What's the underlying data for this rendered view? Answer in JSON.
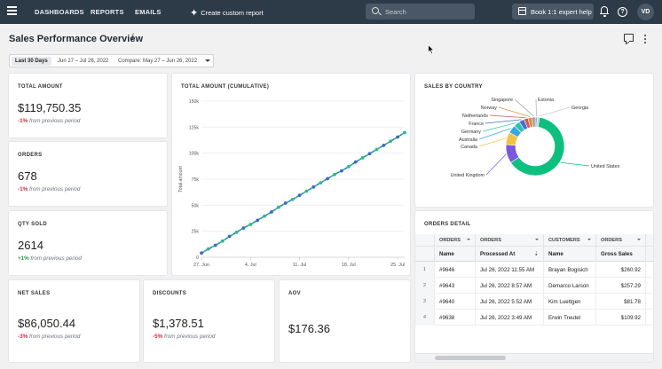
{
  "nav": {
    "links": [
      "DASHBOARDS",
      "REPORTS",
      "EMAILS"
    ],
    "create_label": "Create custom report",
    "search_placeholder": "Search",
    "book_label": "Book 1:1 expert help",
    "avatar_initials": "VD"
  },
  "page": {
    "title": "Sales Performance Overview",
    "info_glyph": "i",
    "date_tag": "Last 30 Days",
    "date_range": "Jun 27 – Jul 26, 2022",
    "compare": "Compare: May 27 – Jun 26, 2022"
  },
  "kpis": {
    "total_amount": {
      "title": "TOTAL AMOUNT",
      "value": "$119,750.35",
      "delta": "-1%",
      "delta_text": "from previous period"
    },
    "orders": {
      "title": "ORDERS",
      "value": "678",
      "delta": "-1%",
      "delta_text": "from previous period"
    },
    "qty_sold": {
      "title": "QTY SOLD",
      "value": "2614",
      "delta": "+1%",
      "delta_text": "from previous period"
    },
    "net_sales": {
      "title": "NET SALES",
      "value": "$86,050.44",
      "delta": "-3%",
      "delta_text": "from previous period"
    },
    "discounts": {
      "title": "DISCOUNTS",
      "value": "$1,378.51",
      "delta": "-5%",
      "delta_text": "from previous period"
    },
    "aov": {
      "title": "AOV",
      "value": "$176.36"
    }
  },
  "colors": {
    "nav_bg": "#2d3a48",
    "negative": "#d6293a",
    "positive": "#2e9a4b",
    "line_blue": "#3d6fcc",
    "line_green": "#2fb98a",
    "donut_green": "#0fbf7f"
  },
  "chart_data": [
    {
      "type": "line",
      "title": "TOTAL AMOUNT (CUMULATIVE)",
      "ylabel": "Total amount",
      "xlabel": "",
      "ylim": [
        0,
        150000
      ],
      "yticks": [
        0,
        25000,
        50000,
        75000,
        100000,
        125000,
        150000
      ],
      "ytick_labels": [
        "0",
        "25k",
        "50k",
        "75k",
        "100k",
        "125k",
        "150k"
      ],
      "x_ticks": [
        "27. Jun",
        "4. Jul",
        "11. Jul",
        "18. Jul",
        "25. Jul"
      ],
      "x": [
        "2022-06-27",
        "2022-06-28",
        "2022-06-29",
        "2022-06-30",
        "2022-07-01",
        "2022-07-02",
        "2022-07-03",
        "2022-07-04",
        "2022-07-05",
        "2022-07-06",
        "2022-07-07",
        "2022-07-08",
        "2022-07-09",
        "2022-07-10",
        "2022-07-11",
        "2022-07-12",
        "2022-07-13",
        "2022-07-14",
        "2022-07-15",
        "2022-07-16",
        "2022-07-17",
        "2022-07-18",
        "2022-07-19",
        "2022-07-20",
        "2022-07-21",
        "2022-07-22",
        "2022-07-23",
        "2022-07-24",
        "2022-07-25",
        "2022-07-26"
      ],
      "series": [
        {
          "values": [
            4000,
            8000,
            11500,
            15500,
            20000,
            24000,
            28000,
            31500,
            35500,
            39500,
            43500,
            48000,
            52000,
            55500,
            59500,
            63500,
            67500,
            71500,
            75500,
            79500,
            83000,
            87000,
            91500,
            95500,
            99500,
            103500,
            107500,
            111500,
            115500,
            119750
          ]
        }
      ],
      "grid": true,
      "legend": "none"
    },
    {
      "type": "pie",
      "title": "SALES BY COUNTRY",
      "donut": true,
      "labels": [
        "United States",
        "United Kingdom",
        "Canada",
        "Australia",
        "Germany",
        "France",
        "Netherlands",
        "Norway",
        "Singapore",
        "Estonia",
        "Georgia"
      ],
      "values": [
        55,
        9,
        6,
        4,
        3,
        2.5,
        2,
        2,
        1.5,
        1,
        1
      ],
      "colors": [
        "#0fbf7f",
        "#7b57e0",
        "#f4c242",
        "#3aa8e0",
        "#2fc2b3",
        "#3d6fcc",
        "#e05252",
        "#e58a3c",
        "#8e9aa8",
        "#a1a9b3",
        "#c3c9cf"
      ]
    }
  ],
  "orders_detail": {
    "title": "ORDERS DETAIL",
    "group_headers": [
      "ORDERS",
      "ORDERS",
      "CUSTOMERS",
      "ORDERS"
    ],
    "columns": [
      "Name",
      "Processed At",
      "Name",
      "Gross Sales"
    ],
    "rows": [
      {
        "n": "1",
        "name": "#9646",
        "processed": "Jul 26, 2022 11:55 AM",
        "customer": "Brayan Bogisich",
        "gross": "$260.92"
      },
      {
        "n": "2",
        "name": "#9643",
        "processed": "Jul 26, 2022 8:57 AM",
        "customer": "Demarco Larson",
        "gross": "$257.29"
      },
      {
        "n": "3",
        "name": "#9640",
        "processed": "Jul 26, 2022 5:52 AM",
        "customer": "Kim Luettgen",
        "gross": "$81.78"
      },
      {
        "n": "4",
        "name": "#9638",
        "processed": "Jul 26, 2022 3:49 AM",
        "customer": "Erwin Treutel",
        "gross": "$109.92"
      }
    ]
  }
}
